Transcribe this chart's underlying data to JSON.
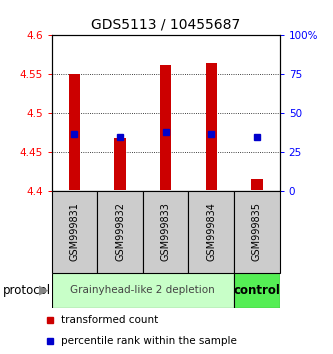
{
  "title": "GDS5113 / 10455687",
  "samples": [
    "GSM999831",
    "GSM999832",
    "GSM999833",
    "GSM999834",
    "GSM999835"
  ],
  "bar_bottoms": [
    4.401,
    4.401,
    4.401,
    4.401,
    4.401
  ],
  "bar_tops": [
    4.55,
    4.468,
    4.562,
    4.565,
    4.415
  ],
  "percentile_values": [
    4.474,
    4.469,
    4.476,
    4.473,
    4.469
  ],
  "ylim": [
    4.4,
    4.6
  ],
  "yticks_left": [
    4.4,
    4.45,
    4.5,
    4.55,
    4.6
  ],
  "ytick_labels_left": [
    "4.4",
    "4.45",
    "4.5",
    "4.55",
    "4.6"
  ],
  "yticks_right_perc": [
    0,
    25,
    50,
    75,
    100
  ],
  "ytick_labels_right": [
    "0",
    "25",
    "50",
    "75",
    "100%"
  ],
  "bar_color": "#cc0000",
  "percentile_color": "#0000cc",
  "group1_indices": [
    0,
    1,
    2,
    3
  ],
  "group2_indices": [
    4
  ],
  "group1_label": "Grainyhead-like 2 depletion",
  "group2_label": "control",
  "group1_color": "#c8ffc8",
  "group2_color": "#55ee55",
  "sample_box_color": "#cccccc",
  "protocol_label": "protocol",
  "legend_red_label": "transformed count",
  "legend_blue_label": "percentile rank within the sample",
  "title_fontsize": 10,
  "tick_fontsize": 7.5,
  "sample_label_fontsize": 7,
  "group_label_fontsize": 7.5,
  "legend_fontsize": 7.5,
  "bar_width": 0.25
}
